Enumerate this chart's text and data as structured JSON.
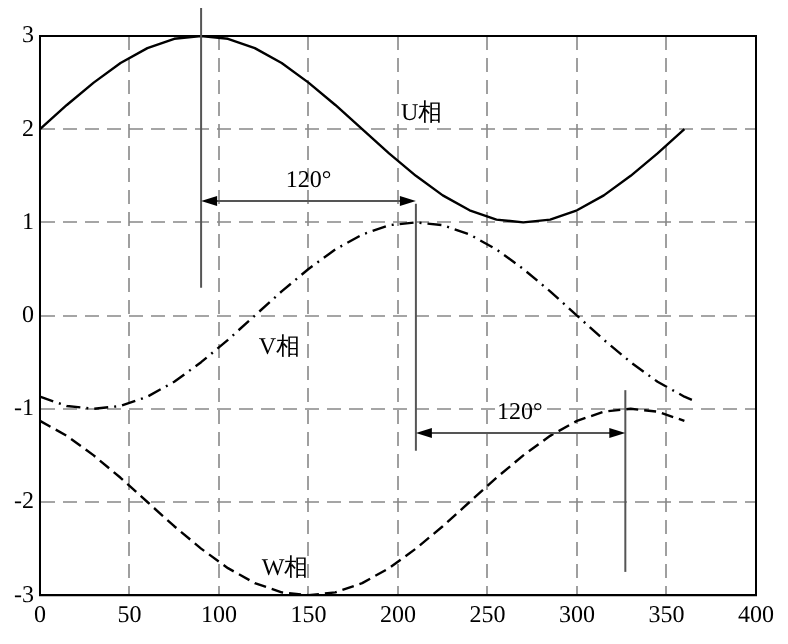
{
  "chart_data": {
    "type": "line",
    "xlim": [
      0,
      400
    ],
    "xticks": [
      0,
      50,
      100,
      150,
      200,
      250,
      300,
      350,
      400
    ],
    "ylim": [
      -3,
      3
    ],
    "yticks": [
      -3,
      -2,
      -1,
      0,
      1,
      2,
      3
    ],
    "grid": true,
    "legend": false,
    "marker": "none",
    "series": [
      {
        "name": "U相",
        "color": "#000000",
        "line_style": "solid",
        "x": [
          0,
          15,
          30,
          45,
          60,
          75,
          90,
          105,
          120,
          135,
          150,
          165,
          180,
          195,
          210,
          225,
          240,
          255,
          270,
          285,
          300,
          315,
          330,
          345,
          360
        ],
        "values": [
          2,
          2.26,
          2.5,
          2.71,
          2.87,
          2.97,
          3,
          2.97,
          2.87,
          2.71,
          2.5,
          2.26,
          2,
          1.74,
          1.5,
          1.29,
          1.13,
          1.03,
          1,
          1.03,
          1.13,
          1.29,
          1.5,
          1.74,
          2
        ]
      },
      {
        "name": "V相",
        "color": "#000000",
        "line_style": "dotted",
        "x": [
          0,
          15,
          30,
          45,
          60,
          75,
          90,
          105,
          120,
          135,
          150,
          165,
          180,
          195,
          210,
          225,
          240,
          255,
          270,
          285,
          300,
          315,
          330,
          345,
          360,
          365
        ],
        "values": [
          -0.87,
          -0.97,
          -1,
          -0.97,
          -0.87,
          -0.71,
          -0.5,
          -0.26,
          0,
          0.26,
          0.5,
          0.71,
          0.87,
          0.97,
          1,
          0.97,
          0.87,
          0.71,
          0.5,
          0.26,
          0,
          -0.26,
          -0.5,
          -0.71,
          -0.87,
          -0.91
        ]
      },
      {
        "name": "W相",
        "color": "#000000",
        "line_style": "dashed",
        "x": [
          0,
          15,
          30,
          45,
          60,
          75,
          90,
          105,
          120,
          135,
          150,
          165,
          180,
          195,
          210,
          225,
          240,
          255,
          270,
          285,
          300,
          315,
          330,
          345,
          360
        ],
        "values": [
          -1.13,
          -1.29,
          -1.5,
          -1.74,
          -2,
          -2.26,
          -2.5,
          -2.71,
          -2.87,
          -2.97,
          -3,
          -2.97,
          -2.87,
          -2.71,
          -2.5,
          -2.26,
          -2,
          -1.74,
          -1.5,
          -1.29,
          -1.13,
          -1.03,
          -1,
          -1.03,
          -1.13
        ]
      }
    ],
    "annotations": [
      "120°",
      "120°"
    ]
  }
}
